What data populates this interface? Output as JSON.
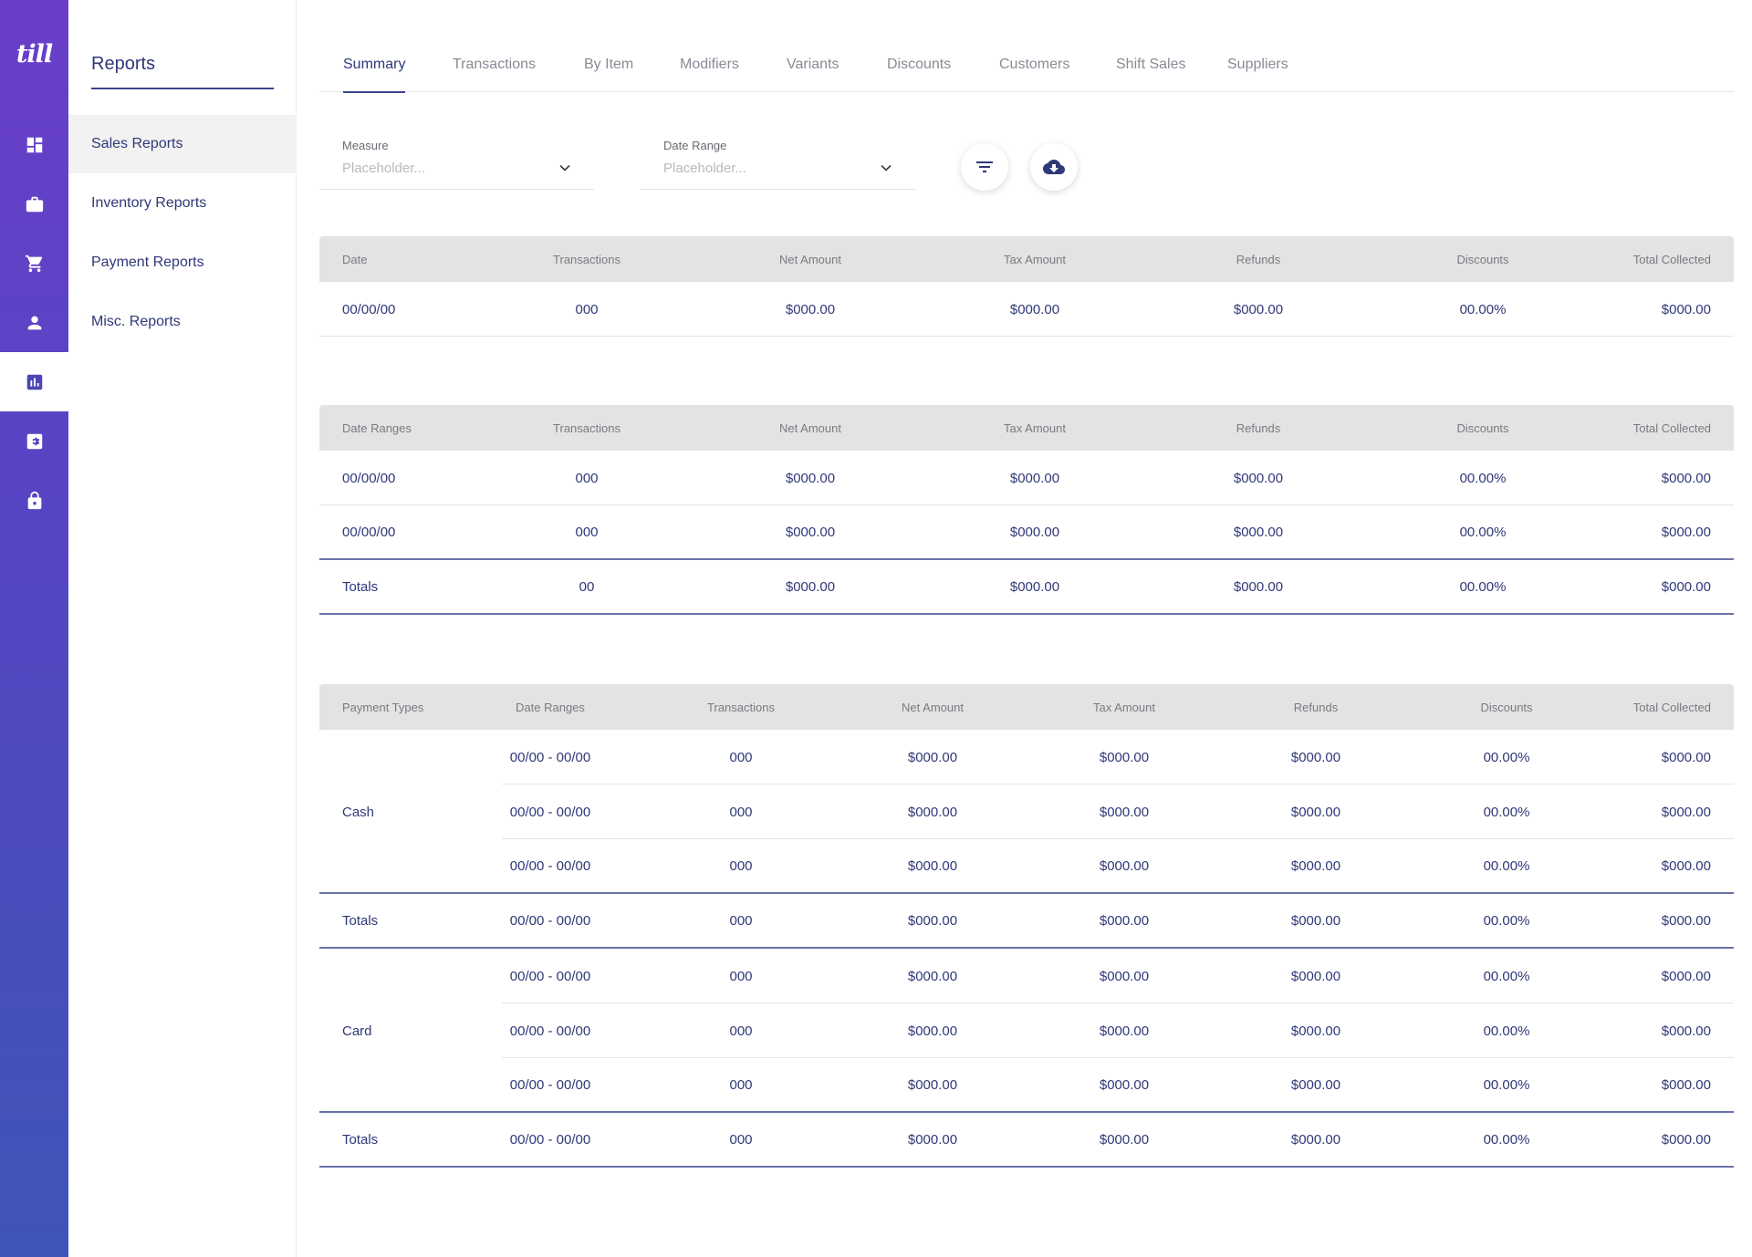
{
  "app": {
    "logo": "till"
  },
  "rail": {
    "items": [
      {
        "icon": "dashboard-icon"
      },
      {
        "icon": "briefcase-icon"
      },
      {
        "icon": "cart-icon"
      },
      {
        "icon": "person-icon"
      },
      {
        "icon": "bar-chart-icon",
        "active": true
      },
      {
        "icon": "settings-icon"
      },
      {
        "icon": "lock-icon"
      }
    ]
  },
  "subnav": {
    "title": "Reports",
    "items": [
      {
        "label": "Sales Reports"
      },
      {
        "label": "Inventory Reports"
      },
      {
        "label": "Payment Reports"
      },
      {
        "label": "Misc. Reports"
      }
    ]
  },
  "tabs": [
    {
      "label": "Summary"
    },
    {
      "label": "Transactions"
    },
    {
      "label": "By Item"
    },
    {
      "label": "Modifiers"
    },
    {
      "label": "Variants"
    },
    {
      "label": "Discounts"
    },
    {
      "label": "Customers"
    },
    {
      "label": "Shift Sales"
    },
    {
      "label": "Suppliers"
    }
  ],
  "filters": {
    "measure": {
      "label": "Measure",
      "placeholder": "Placeholder..."
    },
    "date_range": {
      "label": "Date Range",
      "placeholder": "Placeholder..."
    }
  },
  "table1": {
    "headers": [
      "Date",
      "Transactions",
      "Net Amount",
      "Tax Amount",
      "Refunds",
      "Discounts",
      "Total Collected"
    ],
    "rows": [
      [
        "00/00/00",
        "000",
        "$000.00",
        "$000.00",
        "$000.00",
        "00.00%",
        "$000.00"
      ]
    ]
  },
  "table2": {
    "headers": [
      "Date Ranges",
      "Transactions",
      "Net Amount",
      "Tax Amount",
      "Refunds",
      "Discounts",
      "Total Collected"
    ],
    "rows": [
      [
        "00/00/00",
        "000",
        "$000.00",
        "$000.00",
        "$000.00",
        "00.00%",
        "$000.00"
      ],
      [
        "00/00/00",
        "000",
        "$000.00",
        "$000.00",
        "$000.00",
        "00.00%",
        "$000.00"
      ]
    ],
    "totals": [
      "Totals",
      "00",
      "$000.00",
      "$000.00",
      "$000.00",
      "00.00%",
      "$000.00"
    ]
  },
  "table3": {
    "headers": [
      "Payment Types",
      "Date Ranges",
      "Transactions",
      "Net Amount",
      "Tax Amount",
      "Refunds",
      "Discounts",
      "Total Collected"
    ],
    "groups": [
      {
        "name": "Cash",
        "rows": [
          [
            "00/00 - 00/00",
            "000",
            "$000.00",
            "$000.00",
            "$000.00",
            "00.00%",
            "$000.00"
          ],
          [
            "00/00 - 00/00",
            "000",
            "$000.00",
            "$000.00",
            "$000.00",
            "00.00%",
            "$000.00"
          ],
          [
            "00/00 - 00/00",
            "000",
            "$000.00",
            "$000.00",
            "$000.00",
            "00.00%",
            "$000.00"
          ]
        ],
        "totals": [
          "Totals",
          "00/00 - 00/00",
          "000",
          "$000.00",
          "$000.00",
          "$000.00",
          "00.00%",
          "$000.00"
        ]
      },
      {
        "name": "Card",
        "rows": [
          [
            "00/00 - 00/00",
            "000",
            "$000.00",
            "$000.00",
            "$000.00",
            "00.00%",
            "$000.00"
          ],
          [
            "00/00 - 00/00",
            "000",
            "$000.00",
            "$000.00",
            "$000.00",
            "00.00%",
            "$000.00"
          ],
          [
            "00/00 - 00/00",
            "000",
            "$000.00",
            "$000.00",
            "$000.00",
            "00.00%",
            "$000.00"
          ]
        ],
        "totals": [
          "Totals",
          "00/00 - 00/00",
          "000",
          "$000.00",
          "$000.00",
          "$000.00",
          "00.00%",
          "$000.00"
        ]
      }
    ]
  },
  "colors": {
    "primary": "#2f3878",
    "accent": "#4c45b4",
    "rail_top": "#6a3ec9",
    "rail_bottom": "#3f55b8",
    "header_bg": "#e3e3e3"
  }
}
